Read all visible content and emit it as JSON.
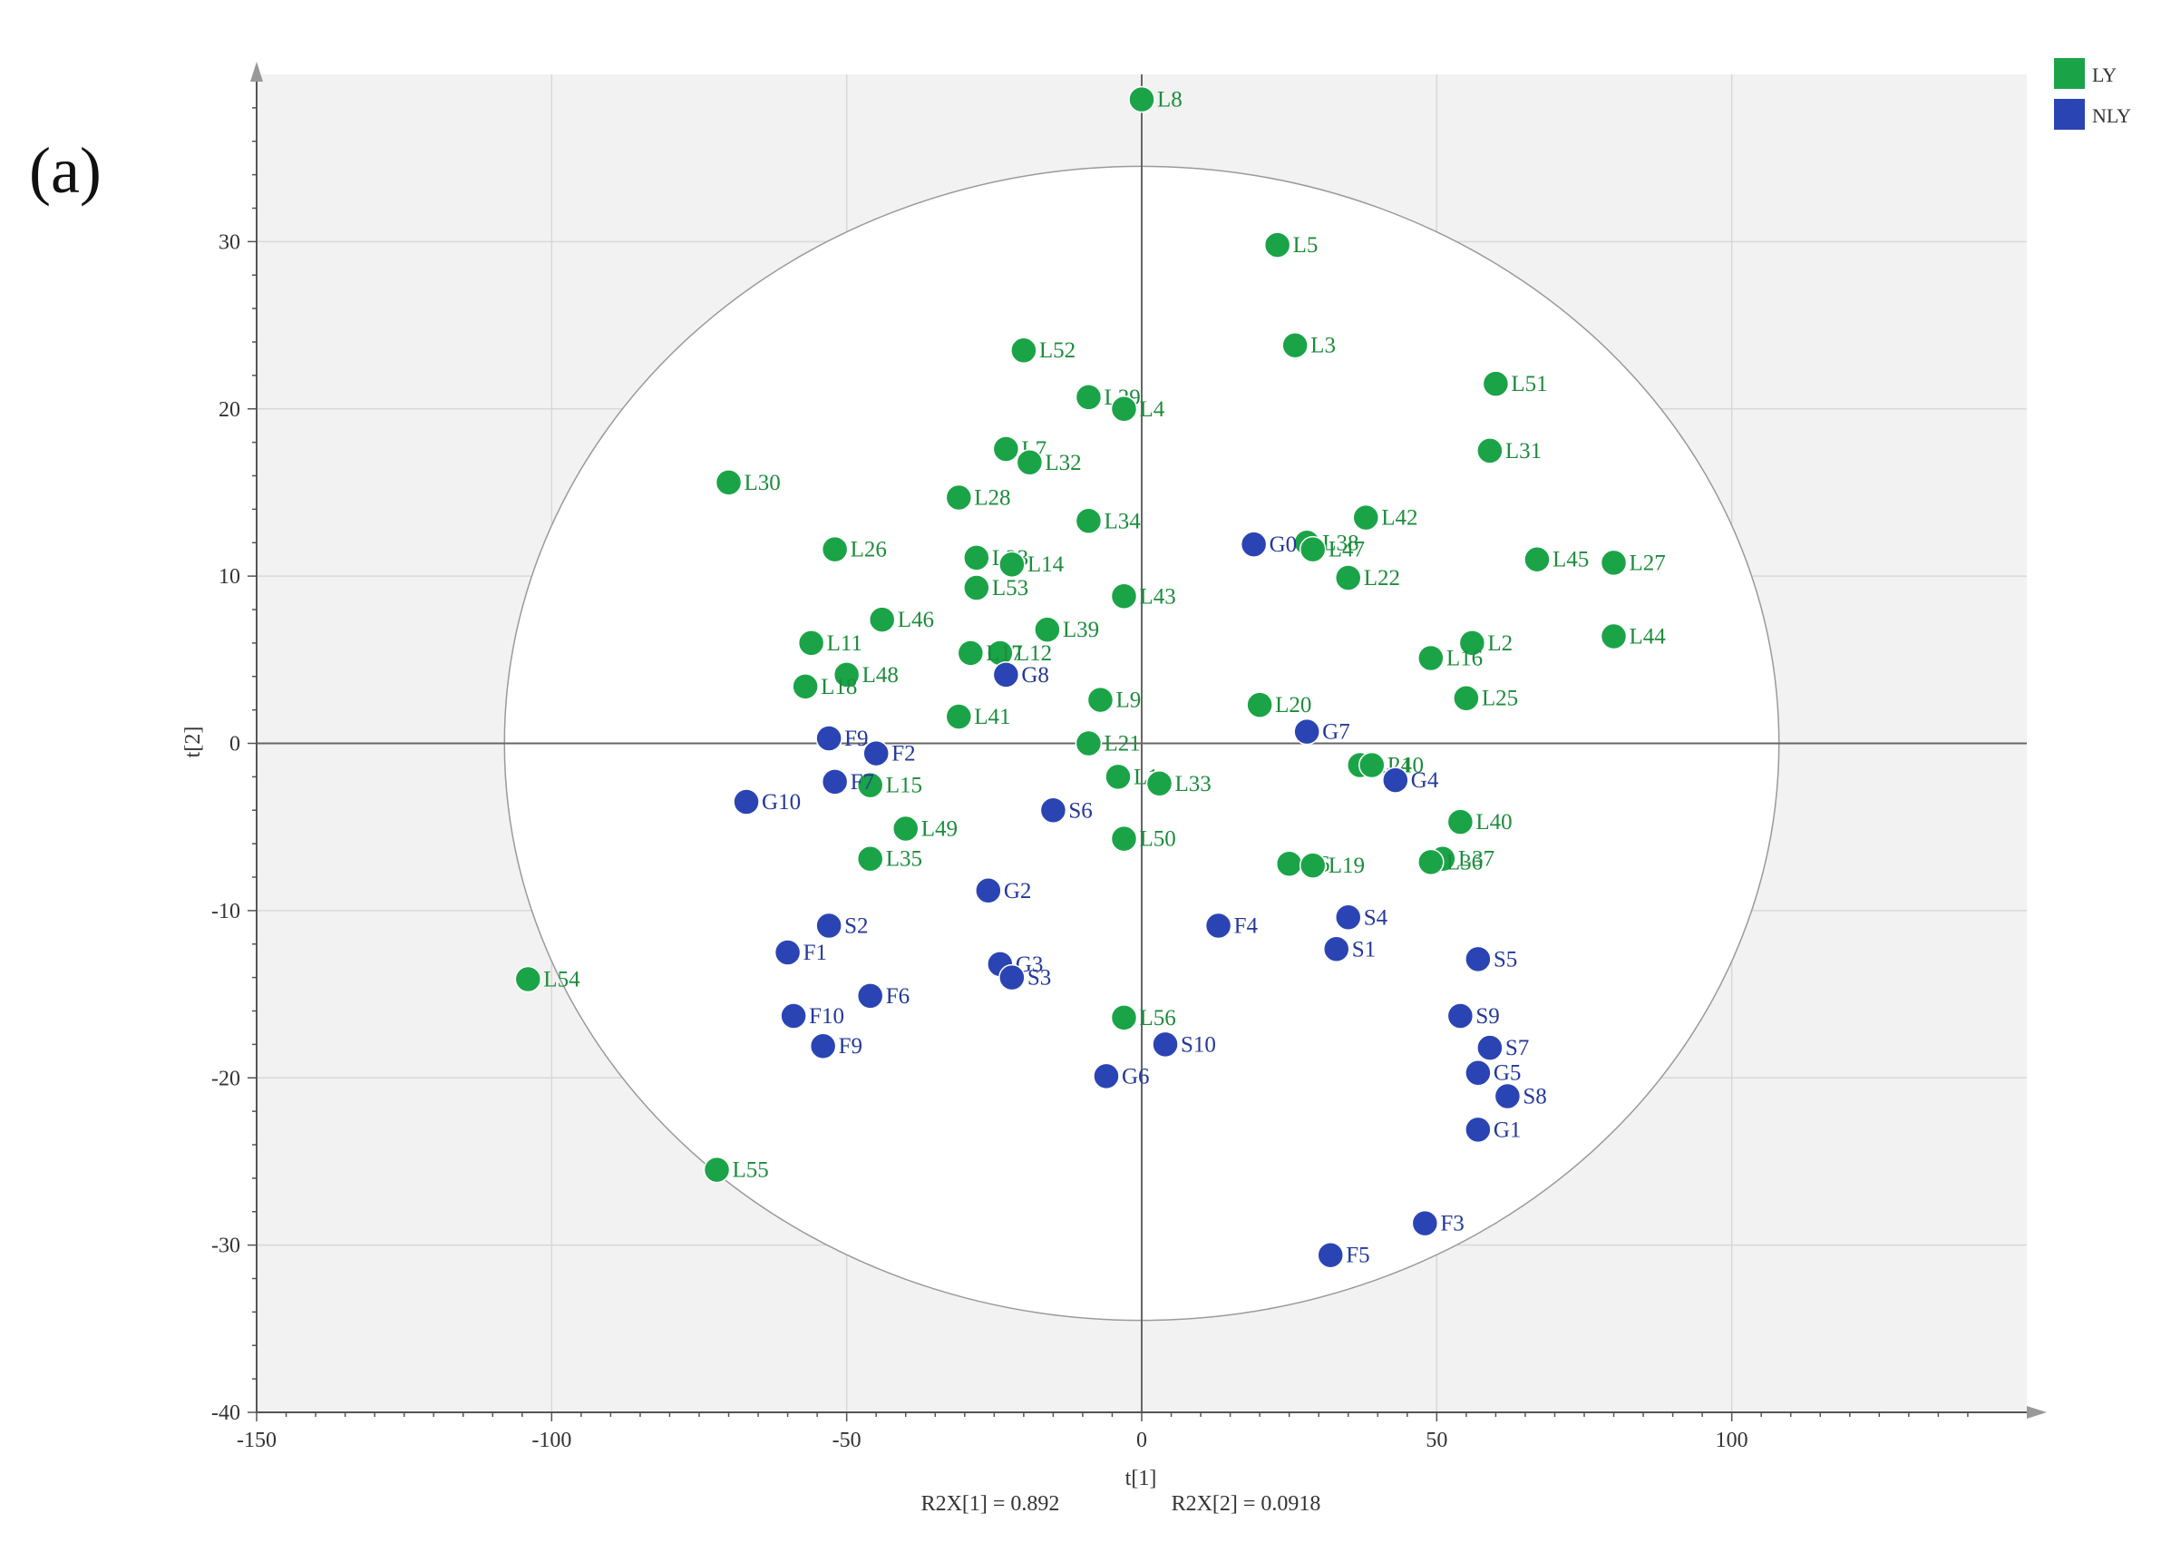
{
  "panel_label": "(a)",
  "r2x": {
    "t1": "R2X[1] = 0.892",
    "t2": "R2X[2] = 0.0918"
  },
  "colors": {
    "LY": "#1aa447",
    "NLY": "#2b44b4",
    "LY_text": "#1c8c3c",
    "NLY_text": "#24389a",
    "background": "#f2f2f2",
    "ellipse_fill": "#ffffff",
    "grid": "#d8d8d8",
    "axis": "#555555"
  },
  "chart_data": {
    "type": "scatter",
    "title": "",
    "xlabel": "t[1]",
    "ylabel": "t[2]",
    "xlim": [
      -150,
      150
    ],
    "ylim": [
      -40,
      40
    ],
    "x_ticks": [
      -150,
      -100,
      -50,
      0,
      50,
      100
    ],
    "x_tick_labels": [
      "-150",
      "-100",
      "-50",
      "0",
      "50",
      "100"
    ],
    "y_ticks": [
      -40,
      -30,
      -20,
      -10,
      0,
      10,
      20,
      30
    ],
    "y_tick_labels": [
      "-40",
      "-30",
      "-20",
      "-10",
      "0",
      "10",
      "20",
      "30"
    ],
    "grid": true,
    "legend_position": "top-right",
    "ellipse": {
      "center": [
        0,
        0
      ],
      "rx": 108,
      "ry": 34.5
    },
    "series": [
      {
        "name": "LY",
        "points": [
          {
            "label": "L8",
            "x": 0,
            "y": 38.5
          },
          {
            "label": "L5",
            "x": 23,
            "y": 29.8
          },
          {
            "label": "L3",
            "x": 26,
            "y": 23.8
          },
          {
            "label": "L52",
            "x": -20,
            "y": 23.5
          },
          {
            "label": "L51",
            "x": 60,
            "y": 21.5
          },
          {
            "label": "L29",
            "x": -9,
            "y": 20.7
          },
          {
            "label": "L4",
            "x": -3,
            "y": 20
          },
          {
            "label": "L31",
            "x": 59,
            "y": 17.5
          },
          {
            "label": "L7",
            "x": -23,
            "y": 17.6
          },
          {
            "label": "L32",
            "x": -19,
            "y": 16.8
          },
          {
            "label": "L30",
            "x": -70,
            "y": 15.6
          },
          {
            "label": "L28",
            "x": -31,
            "y": 14.7
          },
          {
            "label": "L34",
            "x": -9,
            "y": 13.3
          },
          {
            "label": "L42",
            "x": 38,
            "y": 13.5
          },
          {
            "label": "L38",
            "x": 28,
            "y": 12
          },
          {
            "label": "L47",
            "x": 29,
            "y": 11.6
          },
          {
            "label": "L26",
            "x": -52,
            "y": 11.6
          },
          {
            "label": "L23",
            "x": -28,
            "y": 11.1
          },
          {
            "label": "L14",
            "x": -22,
            "y": 10.7
          },
          {
            "label": "L45",
            "x": 67,
            "y": 11
          },
          {
            "label": "L27",
            "x": 80,
            "y": 10.8
          },
          {
            "label": "L22",
            "x": 35,
            "y": 9.9
          },
          {
            "label": "L53",
            "x": -28,
            "y": 9.3
          },
          {
            "label": "L43",
            "x": -3,
            "y": 8.8
          },
          {
            "label": "L46",
            "x": -44,
            "y": 7.4
          },
          {
            "label": "L39",
            "x": -16,
            "y": 6.8
          },
          {
            "label": "L44",
            "x": 80,
            "y": 6.4
          },
          {
            "label": "L2",
            "x": 56,
            "y": 6
          },
          {
            "label": "L11",
            "x": -56,
            "y": 6
          },
          {
            "label": "L12",
            "x": -24,
            "y": 5.4
          },
          {
            "label": "L17",
            "x": -29,
            "y": 5.4
          },
          {
            "label": "L16",
            "x": 49,
            "y": 5.1
          },
          {
            "label": "L48",
            "x": -50,
            "y": 4.1
          },
          {
            "label": "L18",
            "x": -57,
            "y": 3.4
          },
          {
            "label": "L25",
            "x": 55,
            "y": 2.7
          },
          {
            "label": "L9",
            "x": -7,
            "y": 2.6
          },
          {
            "label": "L20",
            "x": 20,
            "y": 2.3
          },
          {
            "label": "L41",
            "x": -31,
            "y": 1.6
          },
          {
            "label": "L21",
            "x": -9,
            "y": 0
          },
          {
            "label": "L24",
            "x": 37,
            "y": -1.3
          },
          {
            "label": "L10",
            "x": 39,
            "y": -1.3
          },
          {
            "label": "L1",
            "x": -4,
            "y": -2
          },
          {
            "label": "L33",
            "x": 3,
            "y": -2.4
          },
          {
            "label": "L15",
            "x": -46,
            "y": -2.5
          },
          {
            "label": "L40",
            "x": 54,
            "y": -4.7
          },
          {
            "label": "L49",
            "x": -40,
            "y": -5.1
          },
          {
            "label": "L50",
            "x": -3,
            "y": -5.7
          },
          {
            "label": "L35",
            "x": -46,
            "y": -6.9
          },
          {
            "label": "L37",
            "x": 51,
            "y": -6.9
          },
          {
            "label": "L36",
            "x": 49,
            "y": -7.1
          },
          {
            "label": "L6",
            "x": 25,
            "y": -7.2
          },
          {
            "label": "L19",
            "x": 29,
            "y": -7.3
          },
          {
            "label": "L54",
            "x": -104,
            "y": -14.1
          },
          {
            "label": "L56",
            "x": -3,
            "y": -16.4
          },
          {
            "label": "L55",
            "x": -72,
            "y": -25.5
          }
        ]
      },
      {
        "name": "NLY",
        "points": [
          {
            "label": "G0",
            "x": 19,
            "y": 11.9
          },
          {
            "label": "G8",
            "x": -23,
            "y": 4.1
          },
          {
            "label": "G7",
            "x": 28,
            "y": 0.7
          },
          {
            "label": "F9",
            "x": -53,
            "y": 0.3
          },
          {
            "label": "F2",
            "x": -45,
            "y": -0.6
          },
          {
            "label": "F7",
            "x": -52,
            "y": -2.3
          },
          {
            "label": "G4",
            "x": 43,
            "y": -2.2
          },
          {
            "label": "G10",
            "x": -67,
            "y": -3.5
          },
          {
            "label": "S6",
            "x": -15,
            "y": -4
          },
          {
            "label": "G2",
            "x": -26,
            "y": -8.8
          },
          {
            "label": "S4",
            "x": 35,
            "y": -10.4
          },
          {
            "label": "F4",
            "x": 13,
            "y": -10.9
          },
          {
            "label": "S2",
            "x": -53,
            "y": -10.9
          },
          {
            "label": "S1",
            "x": 33,
            "y": -12.3
          },
          {
            "label": "F1",
            "x": -60,
            "y": -12.5
          },
          {
            "label": "S5",
            "x": 57,
            "y": -12.9
          },
          {
            "label": "G3",
            "x": -24,
            "y": -13.2
          },
          {
            "label": "S3",
            "x": -22,
            "y": -14
          },
          {
            "label": "F6",
            "x": -46,
            "y": -15.1
          },
          {
            "label": "F10",
            "x": -59,
            "y": -16.3
          },
          {
            "label": "S9",
            "x": 54,
            "y": -16.3
          },
          {
            "label": "S10",
            "x": 4,
            "y": -18
          },
          {
            "label": "F9",
            "x": -54,
            "y": -18.1
          },
          {
            "label": "S7",
            "x": 59,
            "y": -18.2
          },
          {
            "label": "G6",
            "x": -6,
            "y": -19.9
          },
          {
            "label": "G5",
            "x": 57,
            "y": -19.7
          },
          {
            "label": "S8",
            "x": 62,
            "y": -21.1
          },
          {
            "label": "G1",
            "x": 57,
            "y": -23.1
          },
          {
            "label": "F3",
            "x": 48,
            "y": -28.7
          },
          {
            "label": "F5",
            "x": 32,
            "y": -30.6
          }
        ]
      }
    ]
  }
}
